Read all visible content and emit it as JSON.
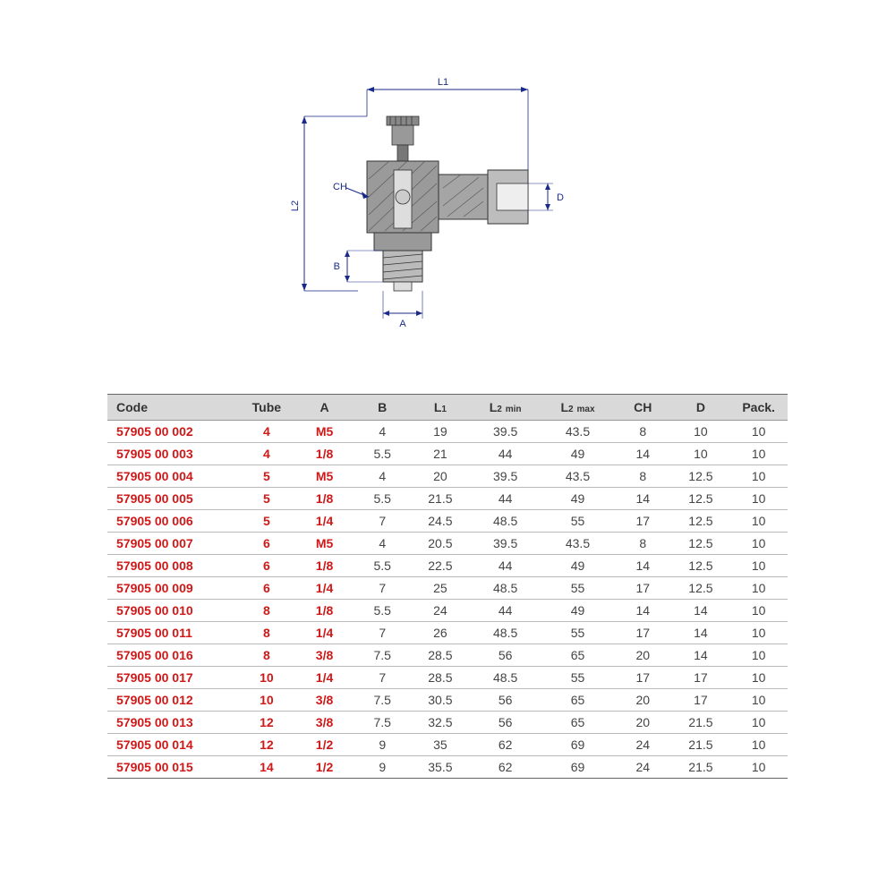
{
  "diagram": {
    "labels": {
      "L1": "L1",
      "L2": "L2",
      "A": "A",
      "B": "B",
      "D": "D",
      "CH": "CH"
    },
    "colors": {
      "line": "#1a2a8a",
      "hatch": "#888888",
      "body": "#666666",
      "body_light": "#aaaaaa"
    }
  },
  "table": {
    "columns": [
      "Code",
      "Tube",
      "A",
      "B",
      "L1",
      "L2 min",
      "L2 max",
      "CH",
      "D",
      "Pack."
    ],
    "L2min_sub": "min",
    "L2max_sub": "max",
    "col_widths_pct": [
      18,
      8,
      8,
      8,
      8,
      10,
      10,
      8,
      8,
      8
    ],
    "rows": [
      [
        "57905 00 002",
        "4",
        "M5",
        "4",
        "19",
        "39.5",
        "43.5",
        "8",
        "10",
        "10"
      ],
      [
        "57905 00 003",
        "4",
        "1/8",
        "5.5",
        "21",
        "44",
        "49",
        "14",
        "10",
        "10"
      ],
      [
        "57905 00 004",
        "5",
        "M5",
        "4",
        "20",
        "39.5",
        "43.5",
        "8",
        "12.5",
        "10"
      ],
      [
        "57905 00 005",
        "5",
        "1/8",
        "5.5",
        "21.5",
        "44",
        "49",
        "14",
        "12.5",
        "10"
      ],
      [
        "57905 00 006",
        "5",
        "1/4",
        "7",
        "24.5",
        "48.5",
        "55",
        "17",
        "12.5",
        "10"
      ],
      [
        "57905 00 007",
        "6",
        "M5",
        "4",
        "20.5",
        "39.5",
        "43.5",
        "8",
        "12.5",
        "10"
      ],
      [
        "57905 00 008",
        "6",
        "1/8",
        "5.5",
        "22.5",
        "44",
        "49",
        "14",
        "12.5",
        "10"
      ],
      [
        "57905 00 009",
        "6",
        "1/4",
        "7",
        "25",
        "48.5",
        "55",
        "17",
        "12.5",
        "10"
      ],
      [
        "57905 00 010",
        "8",
        "1/8",
        "5.5",
        "24",
        "44",
        "49",
        "14",
        "14",
        "10"
      ],
      [
        "57905 00 011",
        "8",
        "1/4",
        "7",
        "26",
        "48.5",
        "55",
        "17",
        "14",
        "10"
      ],
      [
        "57905 00 016",
        "8",
        "3/8",
        "7.5",
        "28.5",
        "56",
        "65",
        "20",
        "14",
        "10"
      ],
      [
        "57905 00 017",
        "10",
        "1/4",
        "7",
        "28.5",
        "48.5",
        "55",
        "17",
        "17",
        "10"
      ],
      [
        "57905 00 012",
        "10",
        "3/8",
        "7.5",
        "30.5",
        "56",
        "65",
        "20",
        "17",
        "10"
      ],
      [
        "57905 00 013",
        "12",
        "3/8",
        "7.5",
        "32.5",
        "56",
        "65",
        "20",
        "21.5",
        "10"
      ],
      [
        "57905 00 014",
        "12",
        "1/2",
        "9",
        "35",
        "62",
        "69",
        "24",
        "21.5",
        "10"
      ],
      [
        "57905 00 015",
        "14",
        "1/2",
        "9",
        "35.5",
        "62",
        "69",
        "24",
        "21.5",
        "10"
      ]
    ],
    "colors": {
      "header_bg": "#d9d9d9",
      "header_text": "#333333",
      "red": "#d01818",
      "cell_text": "#444444",
      "border": "#bbbbbb",
      "border_heavy": "#666666"
    }
  }
}
